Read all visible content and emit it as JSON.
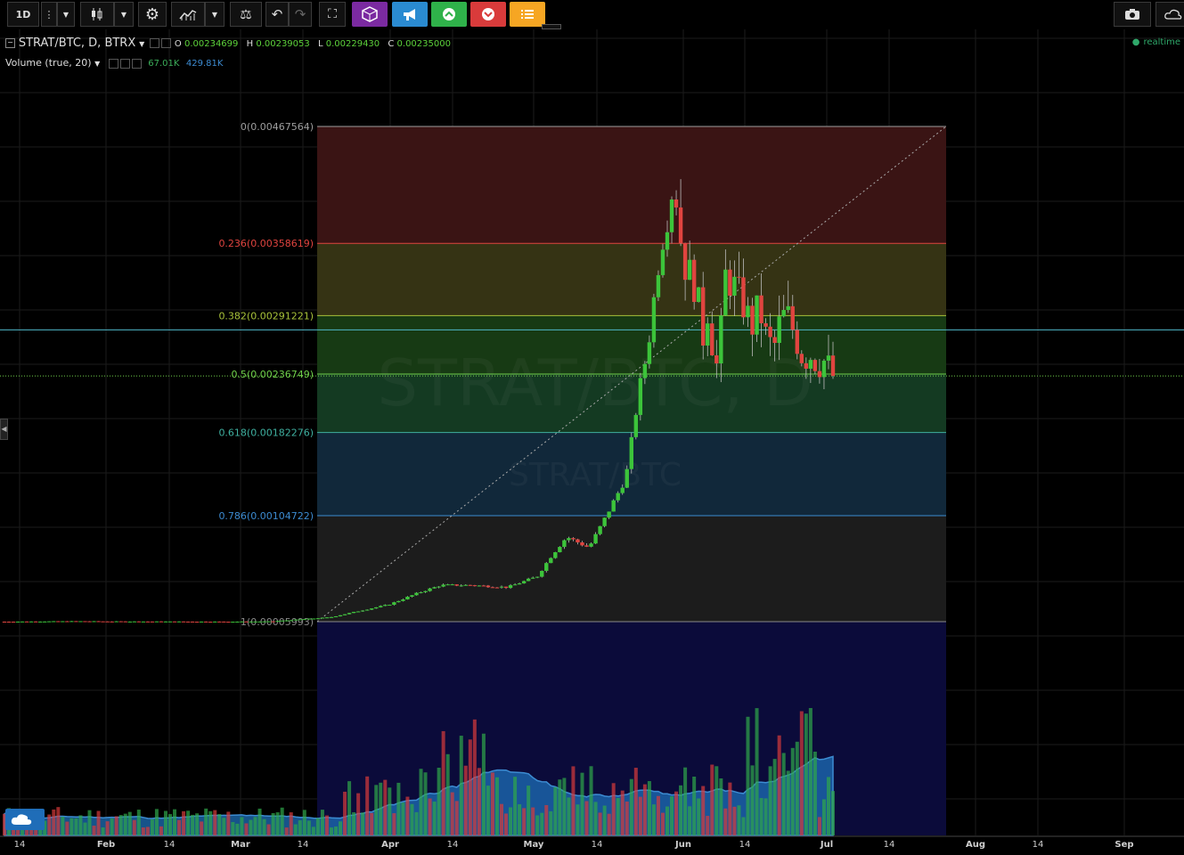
{
  "toolbar": {
    "interval": "1D",
    "buttons": [
      "more",
      "interval-dropdown",
      "chart-type",
      "chart-type-dropdown",
      "settings",
      "indicators",
      "indicators-dropdown",
      "compare",
      "undo",
      "redo",
      "fullscreen",
      "widget-purple",
      "alert-blue",
      "buy-green",
      "sell-red",
      "list-orange",
      "screenshot",
      "cloud"
    ],
    "colors": {
      "purple": "#7b2aa1",
      "blue": "#2a8bd1",
      "green": "#2fb24a",
      "red": "#d93b3b",
      "orange": "#f6a623"
    }
  },
  "legend": {
    "symbol": "STRAT/BTC, D, BTRX",
    "o_label": "O",
    "o": "0.00234699",
    "h_label": "H",
    "h": "0.00239053",
    "l_label": "L",
    "l": "0.00229430",
    "c_label": "C",
    "c": "0.00235000",
    "volume_label": "Volume (true, 20)",
    "volume_val1": "67.01K",
    "volume_val2": "429.81K",
    "realtime": "realtime"
  },
  "watermark": {
    "big": "STRAT/BTC, D",
    "small": "STRAT/BTC"
  },
  "fib": {
    "levels": [
      {
        "label": "0(0.00467564)",
        "ratio": 0,
        "price": 0.00467564,
        "color": "#9e9e9e",
        "fill": "#3a1414"
      },
      {
        "label": "0.236(0.00358619)",
        "ratio": 0.236,
        "price": 0.00358619,
        "color": "#e0443f",
        "fill": "#353314"
      },
      {
        "label": "0.382(0.00291221)",
        "ratio": 0.382,
        "price": 0.00291221,
        "color": "#a8c23a",
        "fill": "#173a14"
      },
      {
        "label": "0.5(0.00236749)",
        "ratio": 0.5,
        "price": 0.00236749,
        "color": "#6fcf4a",
        "fill": "#143a22"
      },
      {
        "label": "0.618(0.00182276)",
        "ratio": 0.618,
        "price": 0.00182276,
        "color": "#3fb0a0",
        "fill": "#11283a"
      },
      {
        "label": "0.786(0.00104722)",
        "ratio": 0.786,
        "price": 0.00104722,
        "color": "#3c8bd1",
        "fill": "#1c1c1c"
      },
      {
        "label": "1(0.00005993)",
        "ratio": 1,
        "price": 5.993e-05,
        "color": "#8a8a8a",
        "fill": "#0b0b3a"
      }
    ]
  },
  "x_axis": {
    "ticks": [
      "14",
      "Feb",
      "14",
      "Mar",
      "14",
      "Apr",
      "14",
      "May",
      "14",
      "Jun",
      "14",
      "Jul",
      "14",
      "Aug",
      "14",
      "Sep"
    ],
    "bold": [
      "Feb",
      "Mar",
      "Apr",
      "May",
      "Jun",
      "Jul",
      "Aug",
      "Sep"
    ]
  },
  "chart_data": {
    "type": "candlestick",
    "price_levels": {
      "cyan_line": 0.00278,
      "current": 0.00235
    },
    "candles_note": "daily OHLC, Jan–early Jul"
  }
}
